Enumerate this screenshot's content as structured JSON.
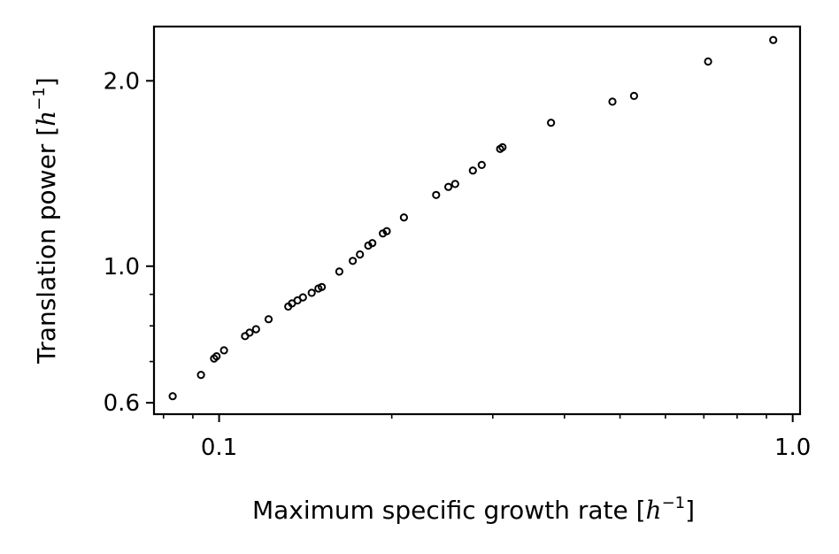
{
  "chart_data": {
    "type": "scatter",
    "xscale": "log",
    "yscale": "log",
    "xlabel": "Maximum specific growth rate [h⁻¹]",
    "ylabel": "Translation power [h⁻¹]",
    "xlabel_parts": {
      "text": "Maximum specific growth rate",
      "var": "h",
      "exp": "−1"
    },
    "ylabel_parts": {
      "text": "Translation power",
      "var": "h",
      "exp": "−1"
    },
    "xlim": [
      0.077,
      1.03
    ],
    "ylim": [
      0.575,
      2.45
    ],
    "xticks": [
      {
        "value": 0.1,
        "label": "0.1"
      },
      {
        "value": 1.0,
        "label": "1.0"
      }
    ],
    "yticks": [
      {
        "value": 0.6,
        "label": "0.6"
      },
      {
        "value": 1.0,
        "label": "1.0"
      },
      {
        "value": 2.0,
        "label": "2.0"
      }
    ],
    "grid": false,
    "marker": "open-circle",
    "series": [
      {
        "points": [
          [
            0.083,
            0.615
          ],
          [
            0.093,
            0.666
          ],
          [
            0.098,
            0.708
          ],
          [
            0.099,
            0.714
          ],
          [
            0.102,
            0.73
          ],
          [
            0.111,
            0.77
          ],
          [
            0.113,
            0.78
          ],
          [
            0.116,
            0.79
          ],
          [
            0.122,
            0.82
          ],
          [
            0.132,
            0.86
          ],
          [
            0.134,
            0.87
          ],
          [
            0.137,
            0.88
          ],
          [
            0.14,
            0.89
          ],
          [
            0.145,
            0.905
          ],
          [
            0.149,
            0.92
          ],
          [
            0.151,
            0.925
          ],
          [
            0.162,
            0.98
          ],
          [
            0.171,
            1.02
          ],
          [
            0.176,
            1.045
          ],
          [
            0.182,
            1.08
          ],
          [
            0.185,
            1.09
          ],
          [
            0.193,
            1.13
          ],
          [
            0.196,
            1.14
          ],
          [
            0.21,
            1.2
          ],
          [
            0.239,
            1.305
          ],
          [
            0.251,
            1.345
          ],
          [
            0.258,
            1.36
          ],
          [
            0.277,
            1.43
          ],
          [
            0.287,
            1.46
          ],
          [
            0.309,
            1.55
          ],
          [
            0.312,
            1.56
          ],
          [
            0.379,
            1.71
          ],
          [
            0.485,
            1.85
          ],
          [
            0.529,
            1.89
          ],
          [
            0.712,
            2.15
          ],
          [
            0.925,
            2.33
          ]
        ]
      }
    ]
  }
}
